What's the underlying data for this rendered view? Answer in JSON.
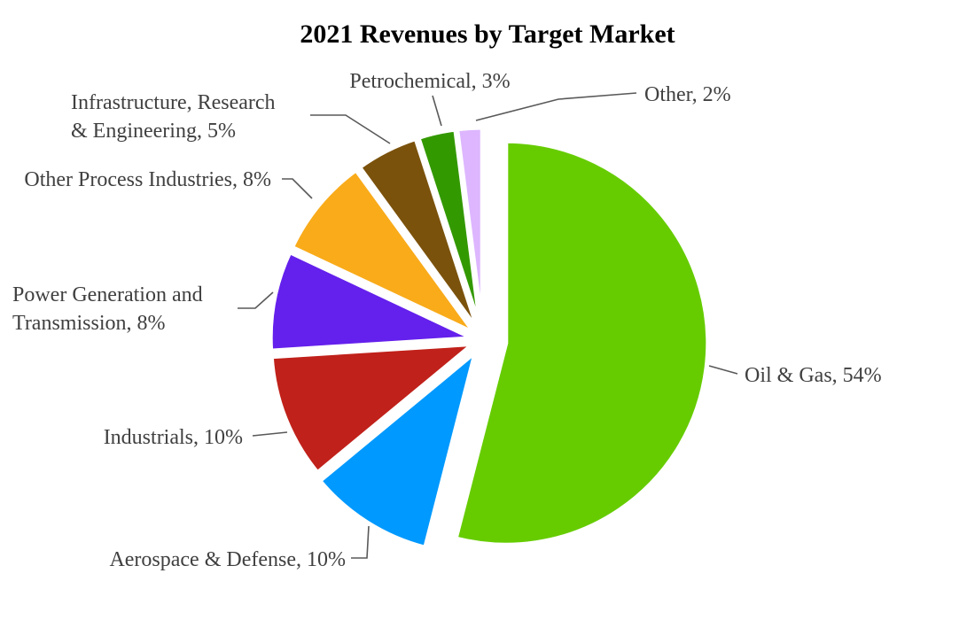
{
  "chart_data": {
    "type": "pie",
    "title": "2021 Revenues by Target Market",
    "slices": [
      {
        "name": "Oil & Gas",
        "value": 54,
        "label": "Oil & Gas, 54%",
        "color": "#66CC00"
      },
      {
        "name": "Aerospace & Defense",
        "value": 10,
        "label": "Aerospace & Defense, 10%",
        "color": "#0099FF"
      },
      {
        "name": "Industrials",
        "value": 10,
        "label": "Industrials, 10%",
        "color": "#C0211A"
      },
      {
        "name": "Power Generation and Transmission",
        "value": 8,
        "label": "Power Generation and Transmission, 8%",
        "label_lines": [
          "Power Generation and",
          "Transmission, 8%"
        ],
        "color": "#6420EC"
      },
      {
        "name": "Other Process Industries",
        "value": 8,
        "label": "Other Process Industries, 8%",
        "color": "#F9AB1A"
      },
      {
        "name": "Infrastructure, Research & Engineering",
        "value": 5,
        "label": "Infrastructure, Research & Engineering, 5%",
        "label_lines": [
          "Infrastructure, Research",
          "& Engineering, 5%"
        ],
        "color": "#7B520C"
      },
      {
        "name": "Petrochemical",
        "value": 3,
        "label": "Petrochemical, 3%",
        "color": "#339900"
      },
      {
        "name": "Other",
        "value": 2,
        "label": "Other, 2%",
        "color": "#DDB6FF"
      }
    ],
    "exploded": true,
    "legend": "none"
  }
}
